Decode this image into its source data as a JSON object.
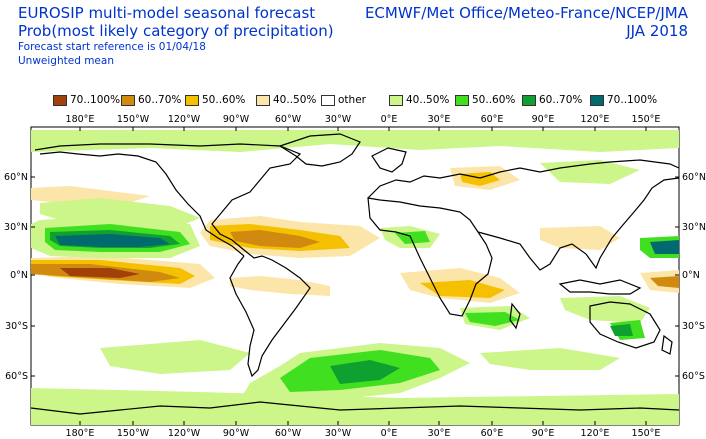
{
  "header": {
    "title_line1": "EUROSIP multi-model seasonal forecast",
    "title_line2": "Prob(most likely category of precipitation)",
    "forecast_ref": "Forecast start reference is 01/04/18",
    "weighting": "Unweighted mean",
    "centres": "ECMWF/Met Office/Meteo-France/NCEP/JMA",
    "season": "JJA 2018"
  },
  "legend": [
    {
      "label": "70..100%",
      "color": "#a0410a"
    },
    {
      "label": "60..70%",
      "color": "#d08a10"
    },
    {
      "label": "50..60%",
      "color": "#f5c000"
    },
    {
      "label": "40..50%",
      "color": "#fbe5a8"
    },
    {
      "label": "other",
      "color": "#ffffff"
    },
    {
      "label": "40..50%",
      "color": "#ccf58a"
    },
    {
      "label": "50..60%",
      "color": "#40e020"
    },
    {
      "label": "60..70%",
      "color": "#10a030"
    },
    {
      "label": "70..100%",
      "color": "#006a6e"
    }
  ],
  "map": {
    "top_lon_labels": [
      "180°E",
      "150°W",
      "120°W",
      "90°W",
      "60°W",
      "30°W",
      "0°E",
      "30°E",
      "60°E",
      "90°E",
      "120°E",
      "150°E"
    ],
    "bottom_lon_labels": [
      "180°E",
      "150°W",
      "120°W",
      "90°W",
      "60°W",
      "30°W",
      "0°E",
      "30°E",
      "60°E",
      "90°E",
      "120°E",
      "150°E"
    ],
    "left_lat_labels": [
      "60°N",
      "30°N",
      "0°N",
      "30°S",
      "60°S"
    ],
    "right_lat_labels": [
      "60°N",
      "30°N",
      "0°N",
      "30°S",
      "60°S"
    ]
  }
}
